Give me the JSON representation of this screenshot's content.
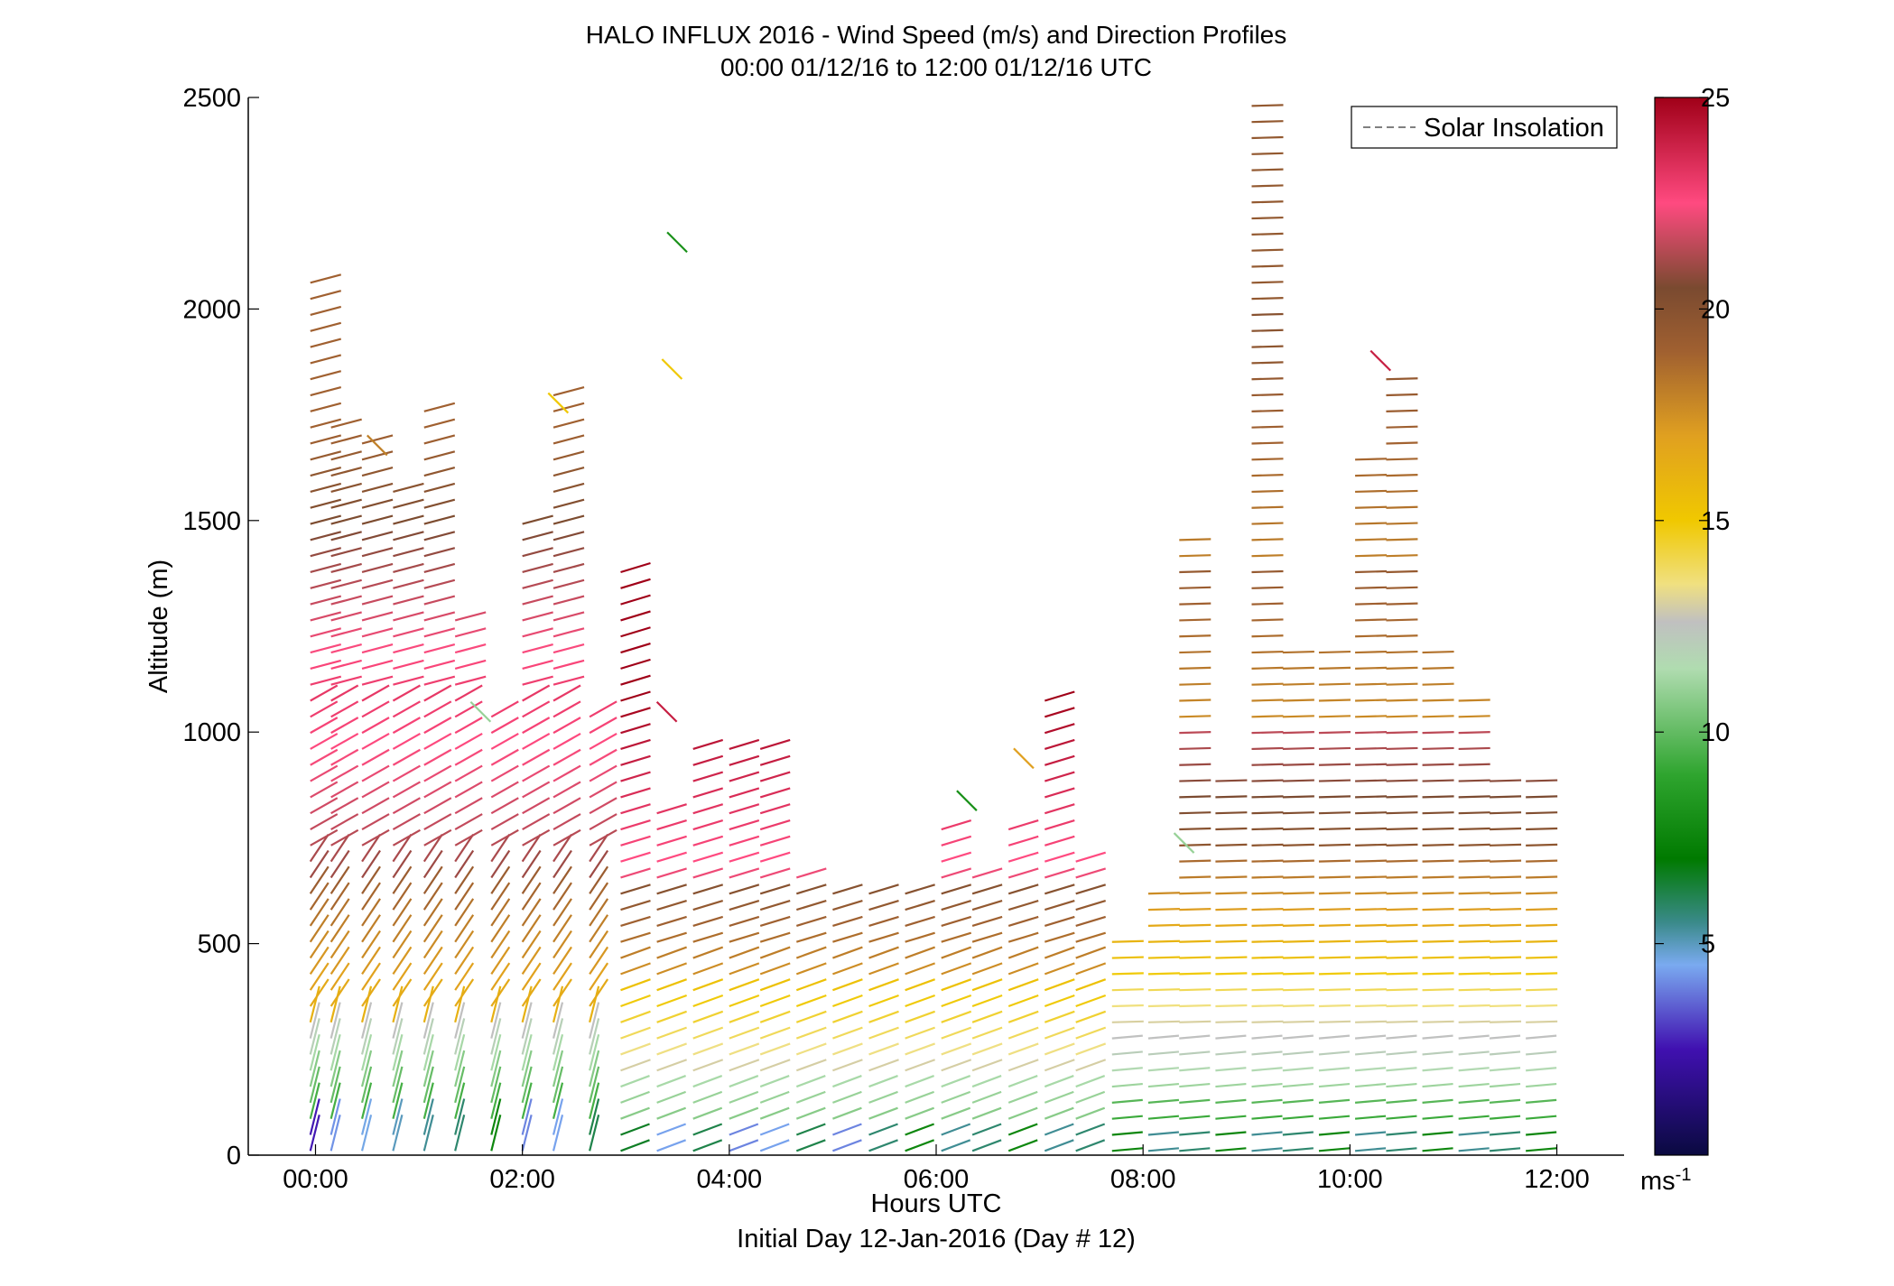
{
  "chart_data": {
    "type": "scatter",
    "subtype": "wind-barb-profile",
    "title": "HALO INFLUX 2016 - Wind Speed (m/s) and Direction Profiles",
    "subtitle": "00:00 01/12/16 to 12:00 01/12/16  UTC",
    "xlabel": "Hours UTC",
    "xlabel2": "Initial Day 12-Jan-2016 (Day # 12)",
    "ylabel": "Altitude (m)",
    "xlim": [
      -0.65,
      12.65
    ],
    "ylim": [
      0,
      2500
    ],
    "xticks": [
      0,
      2,
      4,
      6,
      8,
      10,
      12
    ],
    "xtick_labels": [
      "00:00",
      "02:00",
      "04:00",
      "06:00",
      "08:00",
      "10:00",
      "12:00"
    ],
    "yticks": [
      0,
      500,
      1000,
      1500,
      2000,
      2500
    ],
    "ytick_labels": [
      "0",
      "500",
      "1000",
      "1500",
      "2000",
      "2500"
    ],
    "legend": {
      "entries": [
        {
          "name": "Solar Insolation",
          "style": "dashed",
          "color": "#808080"
        }
      ],
      "position": "top-right"
    },
    "colorbar": {
      "range": [
        0,
        25
      ],
      "ticks": [
        5,
        10,
        15,
        20,
        25
      ],
      "tick_labels": [
        "5",
        "10",
        "15",
        "20",
        "25"
      ],
      "unit": "ms",
      "unit_sup": "-1",
      "stops": [
        {
          "v": 0,
          "color": "#0a0a40"
        },
        {
          "v": 2.5,
          "color": "#4010b0"
        },
        {
          "v": 4.5,
          "color": "#7aaaf0"
        },
        {
          "v": 5.5,
          "color": "#3a8a8a"
        },
        {
          "v": 7,
          "color": "#007a00"
        },
        {
          "v": 9,
          "color": "#2fa52f"
        },
        {
          "v": 11.5,
          "color": "#b0dcb0"
        },
        {
          "v": 12.6,
          "color": "#c0c0c0"
        },
        {
          "v": 13.5,
          "color": "#f0e080"
        },
        {
          "v": 15,
          "color": "#f0c800"
        },
        {
          "v": 17,
          "color": "#e0a020"
        },
        {
          "v": 19,
          "color": "#a06030"
        },
        {
          "v": 20.5,
          "color": "#7a4a30"
        },
        {
          "v": 22.5,
          "color": "#ff4a80"
        },
        {
          "v": 25,
          "color": "#a00018"
        }
      ]
    },
    "profiles": [
      {
        "t": -0.05,
        "top": 2080
      },
      {
        "t": 0.15,
        "top": 1750
      },
      {
        "t": 0.45,
        "top": 1700
      },
      {
        "t": 0.75,
        "top": 1600
      },
      {
        "t": 1.05,
        "top": 1760
      },
      {
        "t": 1.35,
        "top": 1280
      },
      {
        "t": 1.7,
        "top": 1040
      },
      {
        "t": 2.0,
        "top": 1520
      },
      {
        "t": 2.3,
        "top": 1820
      },
      {
        "t": 2.65,
        "top": 1050
      },
      {
        "t": 2.95,
        "top": 1380
      },
      {
        "t": 3.3,
        "top": 820
      },
      {
        "t": 3.65,
        "top": 960
      },
      {
        "t": 4.0,
        "top": 960
      },
      {
        "t": 4.3,
        "top": 970
      },
      {
        "t": 4.65,
        "top": 690
      },
      {
        "t": 5.0,
        "top": 620
      },
      {
        "t": 5.35,
        "top": 650
      },
      {
        "t": 5.7,
        "top": 650
      },
      {
        "t": 6.05,
        "top": 780
      },
      {
        "t": 6.35,
        "top": 690
      },
      {
        "t": 6.7,
        "top": 780
      },
      {
        "t": 7.05,
        "top": 1080
      },
      {
        "t": 7.35,
        "top": 730
      },
      {
        "t": 7.7,
        "top": 520
      },
      {
        "t": 8.05,
        "top": 620
      },
      {
        "t": 8.35,
        "top": 1480
      },
      {
        "t": 8.7,
        "top": 900
      },
      {
        "t": 9.05,
        "top": 2480
      },
      {
        "t": 9.35,
        "top": 1200
      },
      {
        "t": 9.7,
        "top": 1190
      },
      {
        "t": 10.05,
        "top": 1650
      },
      {
        "t": 10.35,
        "top": 1840
      },
      {
        "t": 10.7,
        "top": 1200
      },
      {
        "t": 11.05,
        "top": 1090
      },
      {
        "t": 11.35,
        "top": 900
      },
      {
        "t": 11.7,
        "top": 900
      }
    ],
    "scattered_barbs": [
      {
        "t": 0.5,
        "alt": 1680,
        "speed": 18
      },
      {
        "t": 1.5,
        "alt": 1050,
        "speed": 11
      },
      {
        "t": 2.25,
        "alt": 1780,
        "speed": 15
      },
      {
        "t": 3.3,
        "alt": 1050,
        "speed": 24
      },
      {
        "t": 3.4,
        "alt": 2160,
        "speed": 8
      },
      {
        "t": 3.35,
        "alt": 1860,
        "speed": 15
      },
      {
        "t": 6.2,
        "alt": 840,
        "speed": 8
      },
      {
        "t": 6.75,
        "alt": 940,
        "speed": 17
      },
      {
        "t": 8.3,
        "alt": 740,
        "speed": 11
      },
      {
        "t": 10.2,
        "alt": 1880,
        "speed": 24
      }
    ]
  }
}
